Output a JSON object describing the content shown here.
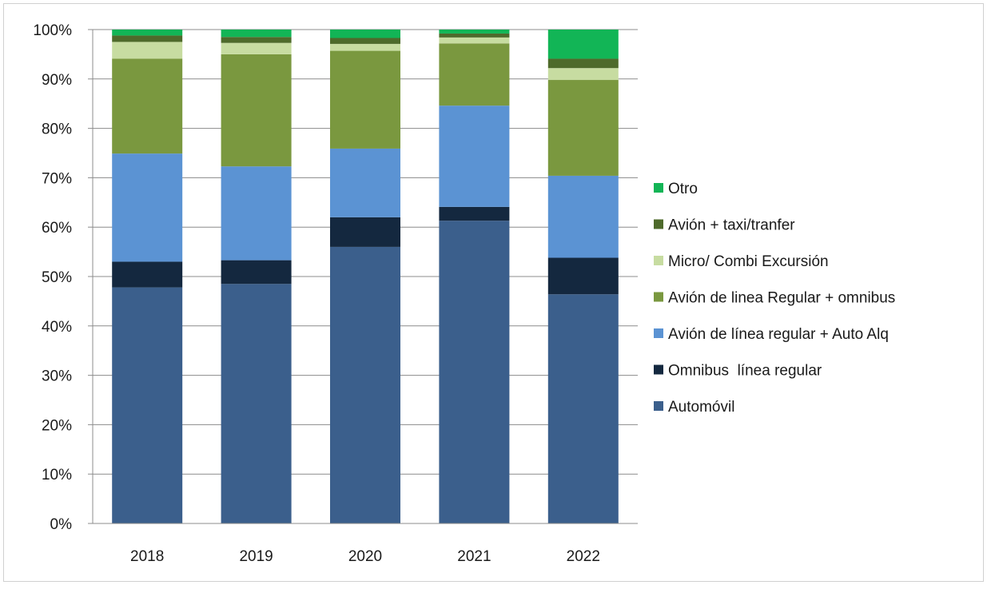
{
  "chart_data": {
    "type": "bar",
    "stacked": true,
    "categories": [
      "2018",
      "2019",
      "2020",
      "2021",
      "2022"
    ],
    "ylim": [
      0,
      100
    ],
    "yticks": [
      "0%",
      "10%",
      "20%",
      "30%",
      "40%",
      "50%",
      "60%",
      "70%",
      "80%",
      "90%",
      "100%"
    ],
    "grid": true,
    "legend_position": "right",
    "series": [
      {
        "name": "Automóvil",
        "color": "#3b5f8c",
        "values": [
          47.8,
          48.5,
          56.0,
          61.3,
          46.4
        ]
      },
      {
        "name": "Omnibus  línea regular",
        "color": "#14283f",
        "values": [
          5.2,
          4.8,
          6.0,
          2.8,
          7.4
        ]
      },
      {
        "name": "Avión de línea regular + Auto Alq",
        "color": "#5b93d3",
        "values": [
          21.9,
          19.0,
          13.9,
          20.5,
          16.6
        ]
      },
      {
        "name": "Avión de linea Regular + omnibus",
        "color": "#7a983f",
        "values": [
          19.2,
          22.7,
          19.8,
          12.6,
          19.4
        ]
      },
      {
        "name": "Micro/ Combi Excursión",
        "color": "#c7dca1",
        "values": [
          3.4,
          2.3,
          1.4,
          1.2,
          2.4
        ]
      },
      {
        "name": "Avión + taxi/tranfer",
        "color": "#4e6a2b",
        "values": [
          1.3,
          1.2,
          1.2,
          0.8,
          1.9
        ]
      },
      {
        "name": "Otro",
        "color": "#12b556",
        "values": [
          1.2,
          1.5,
          1.7,
          0.8,
          5.9
        ]
      }
    ]
  }
}
